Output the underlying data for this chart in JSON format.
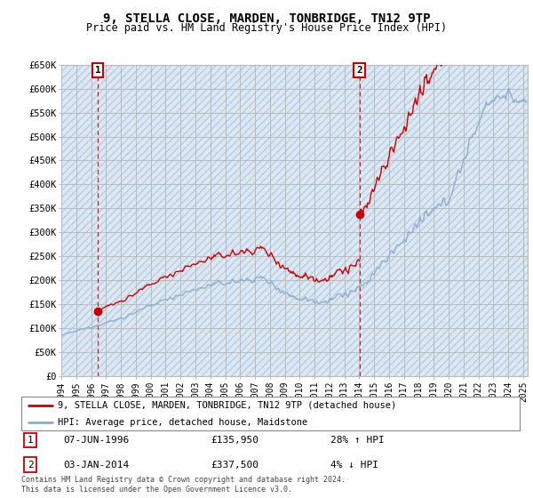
{
  "title": "9, STELLA CLOSE, MARDEN, TONBRIDGE, TN12 9TP",
  "subtitle": "Price paid vs. HM Land Registry's House Price Index (HPI)",
  "legend_line1": "9, STELLA CLOSE, MARDEN, TONBRIDGE, TN12 9TP (detached house)",
  "legend_line2": "HPI: Average price, detached house, Maidstone",
  "table_row1_num": "1",
  "table_row1_date": "07-JUN-1996",
  "table_row1_price": "£135,950",
  "table_row1_hpi": "28% ↑ HPI",
  "table_row2_num": "2",
  "table_row2_date": "03-JAN-2014",
  "table_row2_price": "£337,500",
  "table_row2_hpi": "4% ↓ HPI",
  "footer": "Contains HM Land Registry data © Crown copyright and database right 2024.\nThis data is licensed under the Open Government Licence v3.0.",
  "ylabel_ticks": [
    "£0",
    "£50K",
    "£100K",
    "£150K",
    "£200K",
    "£250K",
    "£300K",
    "£350K",
    "£400K",
    "£450K",
    "£500K",
    "£550K",
    "£600K",
    "£650K"
  ],
  "ytick_values": [
    0,
    50000,
    100000,
    150000,
    200000,
    250000,
    300000,
    350000,
    400000,
    450000,
    500000,
    550000,
    600000,
    650000
  ],
  "sale1_year": 1996.44,
  "sale1_price": 135950,
  "sale2_year": 2014.01,
  "sale2_price": 337500,
  "line_color_red": "#cc0000",
  "line_color_blue": "#88aacc",
  "annotation_color": "#cc0000",
  "grid_color": "#bbbbbb",
  "hatch_color": "#c8d8e8",
  "bg_color": "#dce8f4"
}
